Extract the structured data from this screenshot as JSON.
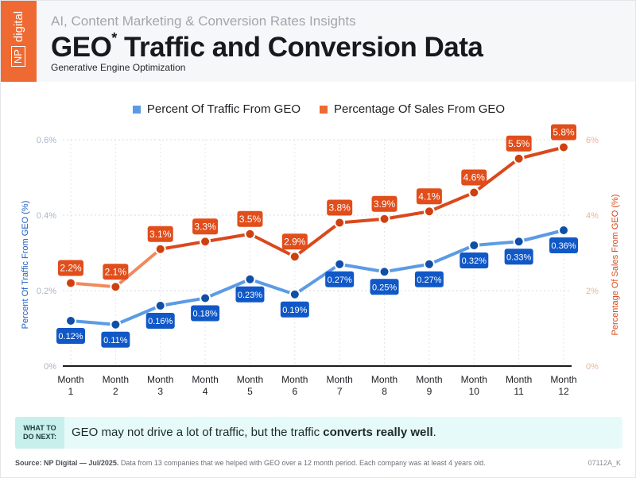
{
  "header": {
    "logo": {
      "line1": "NP",
      "line2": "digital"
    },
    "kicker": "AI, Content Marketing & Conversion Rates Insights",
    "title_main": "GEO",
    "title_sup": "*",
    "title_rest": " Traffic and Conversion Data",
    "subtitle": "Generative Engine Optimization"
  },
  "colors": {
    "brand_orange": "#ee6a32",
    "traffic_line": "#5b9be6",
    "traffic_point": "#0f4fa8",
    "traffic_label_bg": "#1158c7",
    "sales_line": "#d9491c",
    "sales_line_light": "#f08a5d",
    "sales_point": "#d0400f",
    "sales_label_bg": "#e14e1b"
  },
  "chart_data": {
    "type": "line",
    "title": "GEO Traffic and Conversion Data",
    "categories": [
      "Month 1",
      "Month 2",
      "Month 3",
      "Month 4",
      "Month 5",
      "Month 6",
      "Month 7",
      "Month 8",
      "Month 9",
      "Month 10",
      "Month 11",
      "Month 12"
    ],
    "category_lines": [
      [
        "Month",
        "1"
      ],
      [
        "Month",
        "2"
      ],
      [
        "Month",
        "3"
      ],
      [
        "Month",
        "4"
      ],
      [
        "Month",
        "5"
      ],
      [
        "Month",
        "6"
      ],
      [
        "Month",
        "7"
      ],
      [
        "Month",
        "8"
      ],
      [
        "Month",
        "9"
      ],
      [
        "Month",
        "10"
      ],
      [
        "Month",
        "11"
      ],
      [
        "Month",
        "12"
      ]
    ],
    "series": [
      {
        "name": "Percent Of Traffic From GEO",
        "axis": "left",
        "values": [
          0.12,
          0.11,
          0.16,
          0.18,
          0.23,
          0.19,
          0.27,
          0.25,
          0.27,
          0.32,
          0.33,
          0.36
        ],
        "labels": [
          "0.12%",
          "0.11%",
          "0.16%",
          "0.18%",
          "0.23%",
          "0.19%",
          "0.27%",
          "0.25%",
          "0.27%",
          "0.32%",
          "0.33%",
          "0.36%"
        ],
        "label_position": "below"
      },
      {
        "name": "Percentage Of Sales From GEO",
        "axis": "right",
        "values": [
          2.2,
          2.1,
          3.1,
          3.3,
          3.5,
          2.9,
          3.8,
          3.9,
          4.1,
          4.6,
          5.5,
          5.8
        ],
        "labels": [
          "2.2%",
          "2.1%",
          "3.1%",
          "3.3%",
          "3.5%",
          "2.9%",
          "3.8%",
          "3.9%",
          "4.1%",
          "4.6%",
          "5.5%",
          "5.8%"
        ],
        "label_position": "above"
      }
    ],
    "y_left": {
      "label": "Percent Of Traffic From GEO (%)",
      "range": [
        0,
        0.6
      ],
      "ticks": [
        0,
        0.2,
        0.4,
        0.6
      ],
      "tick_labels": [
        "0%",
        "0.2%",
        "0.4%",
        "0.6%"
      ]
    },
    "y_right": {
      "label": "Percentage Of Sales From GEO (%)",
      "range": [
        0,
        6
      ],
      "ticks": [
        0,
        2,
        4,
        6
      ],
      "tick_labels": [
        "0%",
        "2%",
        "4%",
        "6%"
      ]
    },
    "xlabel": "",
    "grid": true,
    "legend": "top-center"
  },
  "tip": {
    "label_line1": "WHAT TO",
    "label_line2": "DO NEXT:",
    "text_plain": "GEO may not drive a lot of traffic, but the traffic ",
    "text_bold": "converts really well",
    "text_end": "."
  },
  "footer": {
    "source_bold": "Source: NP Digital — Jul/2025.",
    "source_text": " Data from 13 companies that we helped with GEO over a 12 month period. Each company was at least 4 years old.",
    "code": "07112A_K"
  }
}
